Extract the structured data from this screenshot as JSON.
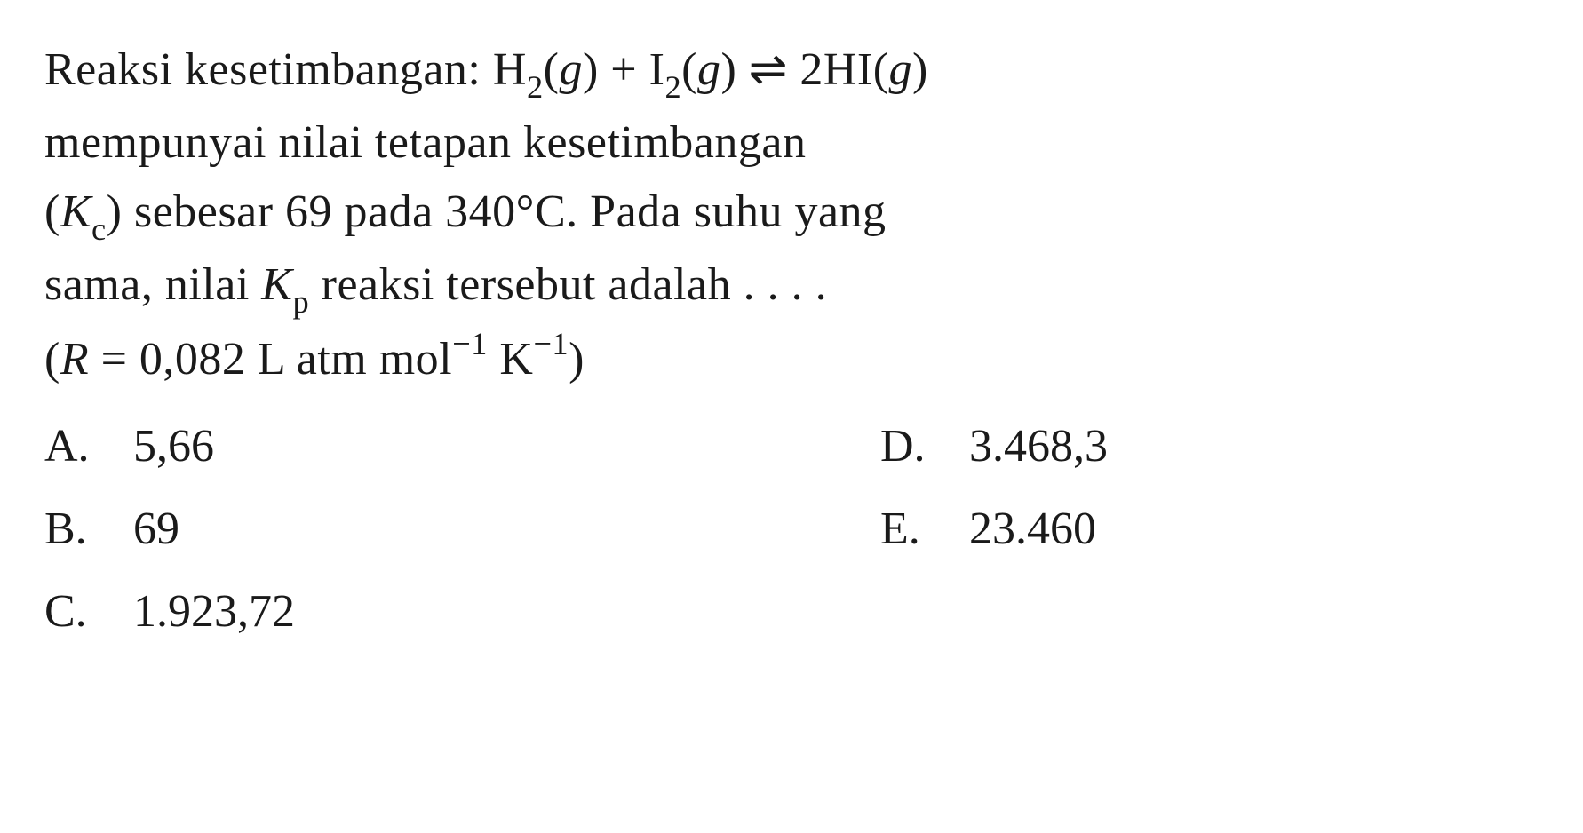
{
  "question": {
    "line1_part1": "Reaksi kesetimbangan: H",
    "line1_sub1": "2",
    "line1_part2": "(",
    "line1_g1": "g",
    "line1_part3": ") + I",
    "line1_sub2": "2",
    "line1_part4": "(",
    "line1_g2": "g",
    "line1_part5": ") ⇌ 2HI(",
    "line1_g3": "g",
    "line1_part6": ")",
    "line2": "mempunyai nilai tetapan kesetimbangan",
    "line3_part1": "(",
    "line3_K": "K",
    "line3_c": "c",
    "line3_part2": ") sebesar 69 pada 340°C. Pada suhu yang",
    "line4_part1": "sama, nilai ",
    "line4_K": "K",
    "line4_p": "p",
    "line4_part2": " reaksi tersebut adalah . . . .",
    "line5_part1": "(",
    "line5_R": "R",
    "line5_part2": " = 0,082 L atm mol",
    "line5_sup1": "−1",
    "line5_part3": " K",
    "line5_sup2": "−1",
    "line5_part4": ")"
  },
  "answers": {
    "a": {
      "letter": "A.",
      "value": "5,66"
    },
    "b": {
      "letter": "B.",
      "value": "69"
    },
    "c": {
      "letter": "C.",
      "value": "1.923,72"
    },
    "d": {
      "letter": "D.",
      "value": "3.468,3"
    },
    "e": {
      "letter": "E.",
      "value": "23.460"
    }
  },
  "styling": {
    "font_size_pt": 52,
    "text_color": "#1a1a1a",
    "background_color": "#ffffff",
    "font_family": "Georgia, Times New Roman, serif",
    "line_height": 1.5
  }
}
